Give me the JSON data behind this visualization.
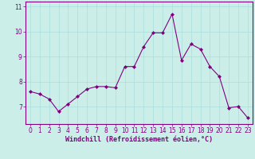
{
  "x": [
    0,
    1,
    2,
    3,
    4,
    5,
    6,
    7,
    8,
    9,
    10,
    11,
    12,
    13,
    14,
    15,
    16,
    17,
    18,
    19,
    20,
    21,
    22,
    23
  ],
  "y": [
    7.6,
    7.5,
    7.3,
    6.8,
    7.1,
    7.4,
    7.7,
    7.8,
    7.8,
    7.75,
    8.6,
    8.6,
    9.4,
    9.95,
    9.95,
    10.7,
    8.85,
    9.5,
    9.3,
    8.6,
    8.2,
    6.95,
    7.0,
    6.55
  ],
  "line_color": "#800080",
  "marker": "D",
  "marker_size": 2,
  "bg_color": "#cceee8",
  "grid_color": "#aadddd",
  "xlabel": "Windchill (Refroidissement éolien,°C)",
  "xlabel_color": "#800080",
  "tick_color": "#800080",
  "spine_color": "#800080",
  "ylim": [
    6.3,
    11.2
  ],
  "yticks": [
    7,
    8,
    9,
    10,
    11
  ],
  "xticks": [
    0,
    1,
    2,
    3,
    4,
    5,
    6,
    7,
    8,
    9,
    10,
    11,
    12,
    13,
    14,
    15,
    16,
    17,
    18,
    19,
    20,
    21,
    22,
    23
  ],
  "tick_fontsize": 5.5,
  "xlabel_fontsize": 6.0
}
